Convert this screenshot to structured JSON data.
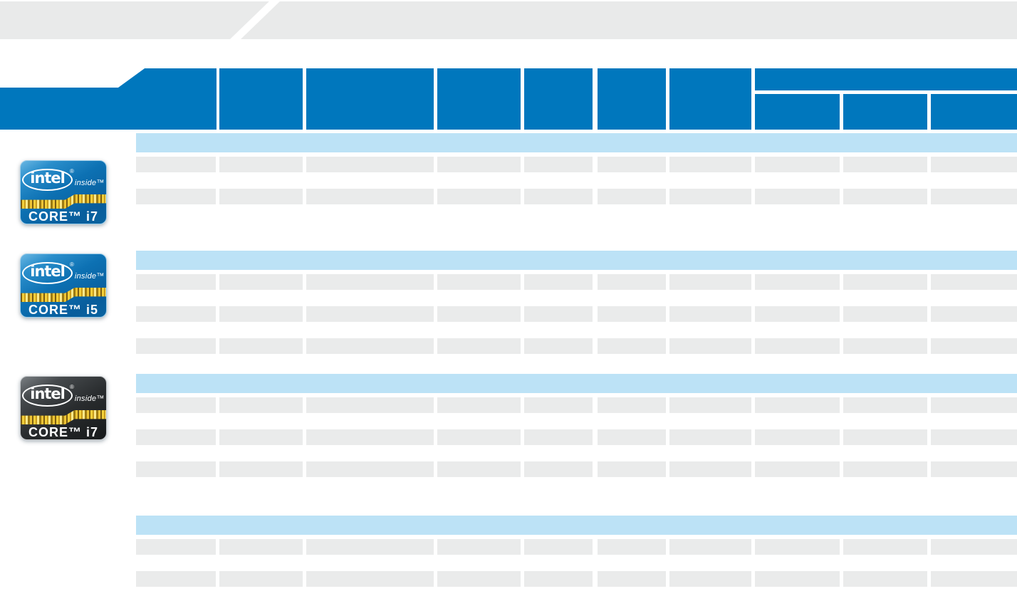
{
  "colors": {
    "header_blue": "#0077bd",
    "section_blue": "#bce2f6",
    "cell_gray": "#eaebeb",
    "banner_gray": "#e9eaea",
    "badge_gold": "#eec435",
    "badge_blue": "#0d71b3",
    "badge_dark": "#292c2e"
  },
  "banner": {
    "text": ""
  },
  "table": {
    "header": {
      "main_cells": [
        "",
        "",
        "",
        "",
        "",
        "",
        ""
      ],
      "group": {
        "label": "",
        "sub_cells": [
          "",
          "",
          ""
        ]
      }
    },
    "sections": [
      {
        "label": "",
        "rows": 2
      },
      {
        "label": "",
        "rows": 3
      },
      {
        "label": "",
        "rows": 3
      },
      {
        "label": "",
        "rows": 2
      }
    ]
  },
  "badges": [
    {
      "name": "intel-core-i7-badge",
      "variant": "blue",
      "brand": "intel",
      "reg": "®",
      "inside": "inside™",
      "line": "CORE™ i7"
    },
    {
      "name": "intel-core-i5-badge",
      "variant": "blue",
      "brand": "intel",
      "reg": "®",
      "inside": "inside™",
      "line": "CORE™ i5"
    },
    {
      "name": "intel-core-i7-extreme-badge",
      "variant": "dark",
      "brand": "intel",
      "reg": "®",
      "inside": "inside™",
      "line": "CORE™ i7"
    }
  ]
}
